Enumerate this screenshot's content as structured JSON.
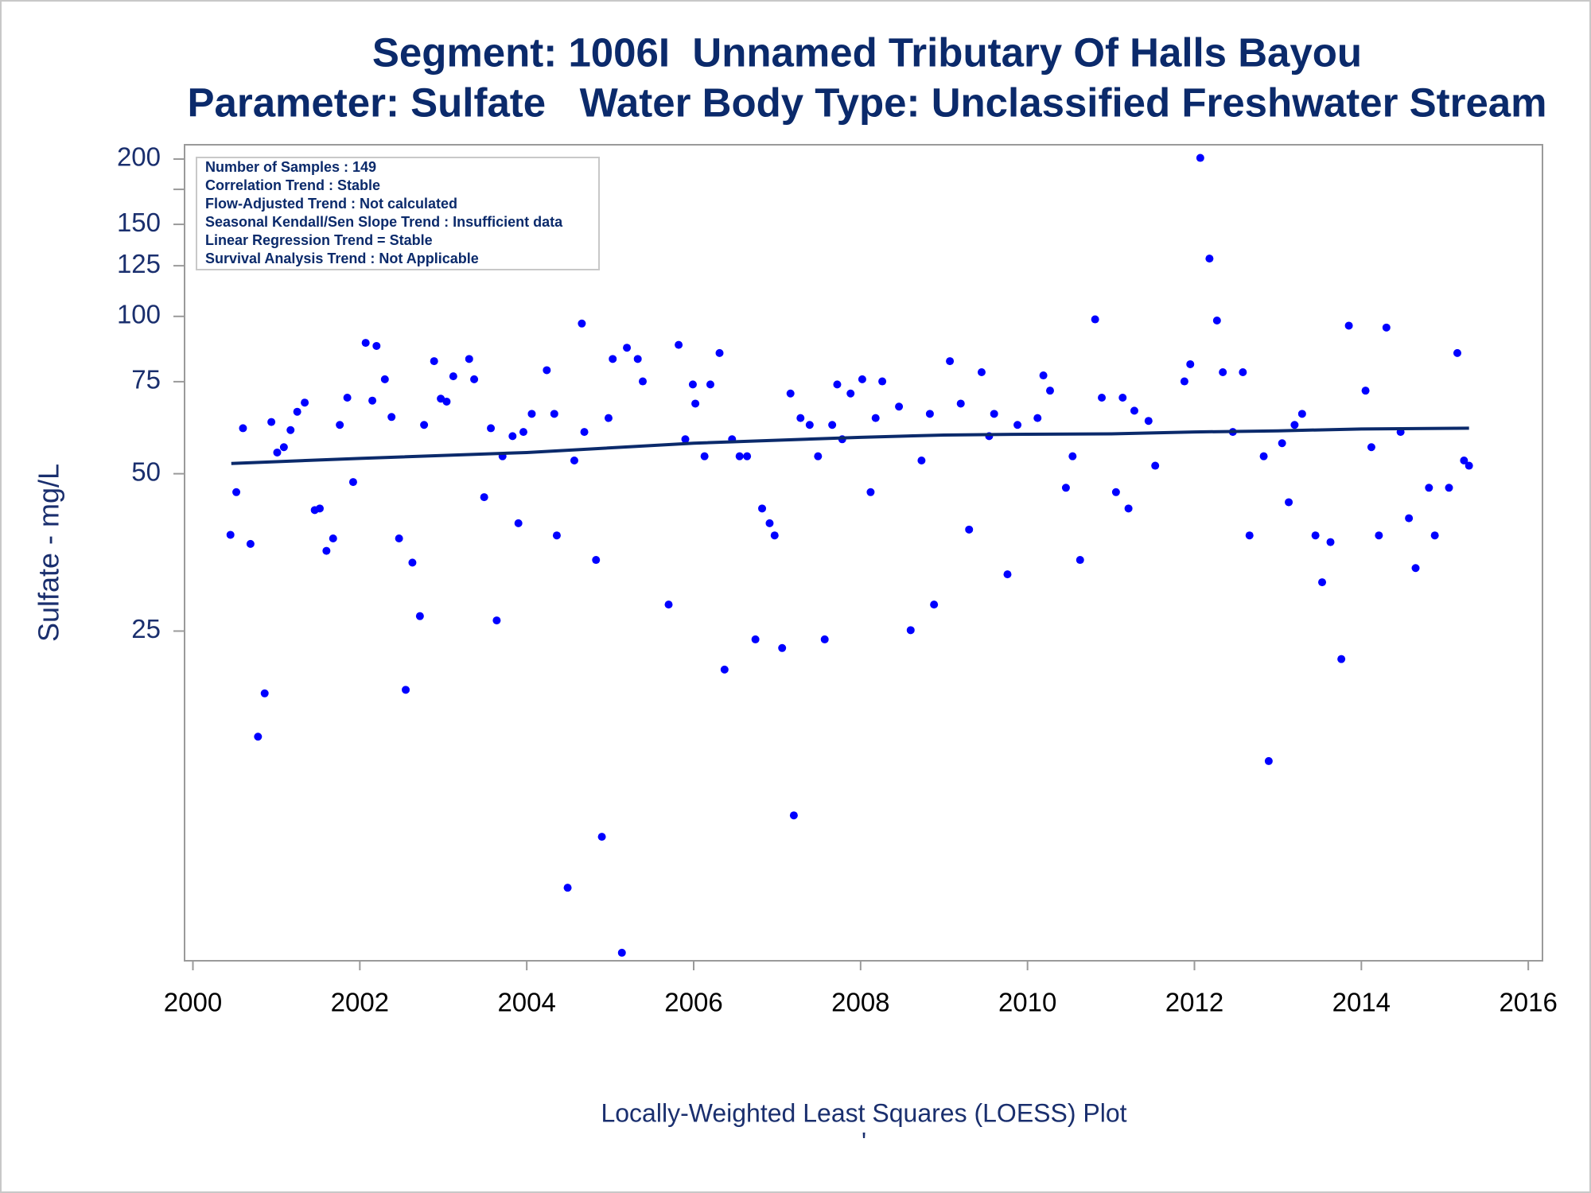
{
  "chart_data": {
    "type": "scatter",
    "title": "Segment: 1006I  Unnamed Tributary Of Halls Bayou",
    "subtitle": "Parameter: Sulfate   Water Body Type: Unclassified Freshwater Stream",
    "y_label": "Sulfate - mg/L",
    "footnote": "Locally-Weighted Least Squares (LOESS) Plot",
    "footnote_mark": "'",
    "annotations": [
      "Number of Samples : 149",
      "Correlation Trend : Stable",
      "Flow-Adjusted Trend : Not calculated",
      "Seasonal Kendall/Sen Slope Trend : Insufficient data",
      "Linear Regression Trend = Stable",
      "Survival Analysis Trend : Not Applicable"
    ],
    "xlim": [
      1999.9,
      2016.17
    ],
    "xticks": [
      2000,
      2002,
      2004,
      2006,
      2008,
      2010,
      2012,
      2014,
      2016
    ],
    "ylim": [
      5.85,
      213
    ],
    "ylog": true,
    "yticks": [
      25,
      50,
      75,
      100,
      125,
      150,
      {
        "value": 175,
        "label": null
      },
      200
    ],
    "series": [
      {
        "type": "scatter",
        "color": "#0000ff",
        "x": [
          2000.45,
          2000.52,
          2000.6,
          2000.69,
          2000.78,
          2000.86,
          2000.94,
          2001.01,
          2001.09,
          2001.17,
          2001.25,
          2001.34,
          2001.46,
          2001.52,
          2001.6,
          2001.68,
          2001.76,
          2001.85,
          2001.92,
          2002.07,
          2002.15,
          2002.2,
          2002.3,
          2002.38,
          2002.47,
          2002.55,
          2002.63,
          2002.72,
          2002.77,
          2002.89,
          2002.97,
          2003.04,
          2003.12,
          2003.31,
          2003.37,
          2003.49,
          2003.57,
          2003.64,
          2003.71,
          2003.83,
          2003.9,
          2003.96,
          2004.06,
          2004.24,
          2004.33,
          2004.36,
          2004.49,
          2004.57,
          2004.66,
          2004.69,
          2004.83,
          2004.9,
          2004.98,
          2005.03,
          2005.14,
          2005.2,
          2005.33,
          2005.39,
          2005.7,
          2005.82,
          2005.9,
          2005.99,
          2006.02,
          2006.13,
          2006.2,
          2006.31,
          2006.37,
          2006.46,
          2006.55,
          2006.64,
          2006.74,
          2006.82,
          2006.91,
          2006.97,
          2007.06,
          2007.16,
          2007.2,
          2007.28,
          2007.39,
          2007.49,
          2007.57,
          2007.66,
          2007.72,
          2007.78,
          2007.88,
          2008.02,
          2008.12,
          2008.18,
          2008.26,
          2008.46,
          2008.6,
          2008.73,
          2008.83,
          2008.88,
          2009.07,
          2009.2,
          2009.3,
          2009.45,
          2009.54,
          2009.6,
          2009.76,
          2009.88,
          2010.12,
          2010.19,
          2010.27,
          2010.46,
          2010.54,
          2010.63,
          2010.81,
          2010.89,
          2011.06,
          2011.14,
          2011.21,
          2011.28,
          2011.45,
          2011.53,
          2011.88,
          2011.95,
          2012.07,
          2012.18,
          2012.27,
          2012.34,
          2012.46,
          2012.58,
          2012.66,
          2012.83,
          2012.89,
          2013.05,
          2013.13,
          2013.2,
          2013.29,
          2013.45,
          2013.53,
          2013.63,
          2013.76,
          2013.85,
          2014.05,
          2014.12,
          2014.21,
          2014.3,
          2014.47,
          2014.57,
          2014.65,
          2014.81,
          2014.88,
          2015.05,
          2015.15,
          2015.23,
          2015.29
        ],
        "values": [
          38.2,
          46.1,
          61.1,
          36.7,
          15.7,
          19.0,
          62.8,
          54.9,
          56.2,
          60.6,
          65.7,
          68.4,
          42.6,
          42.9,
          35.6,
          37.6,
          62.0,
          69.9,
          48.2,
          89.0,
          69.0,
          87.8,
          75.8,
          64.2,
          37.6,
          19.3,
          33.8,
          26.7,
          62.0,
          82.1,
          69.6,
          68.7,
          76.8,
          82.9,
          75.8,
          45.1,
          61.1,
          26.2,
          54.0,
          59.0,
          40.2,
          60.1,
          65.1,
          78.9,
          65.1,
          38.1,
          8.07,
          53.0,
          96.9,
          60.1,
          34.2,
          10.1,
          63.9,
          82.9,
          6.06,
          87.1,
          82.9,
          75.1,
          28.1,
          88.2,
          58.2,
          74.1,
          68.1,
          54.0,
          74.1,
          85.1,
          21.1,
          58.2,
          54.0,
          54.0,
          24.1,
          42.9,
          40.2,
          38.1,
          23.2,
          71.2,
          11.1,
          63.9,
          62.0,
          54.0,
          24.1,
          62.0,
          74.1,
          58.2,
          71.2,
          75.8,
          46.1,
          63.9,
          75.1,
          67.2,
          25.1,
          53.0,
          65.1,
          28.1,
          82.1,
          68.1,
          39.1,
          78.2,
          59.0,
          65.1,
          32.1,
          62.0,
          63.9,
          77.1,
          72.1,
          47.0,
          54.0,
          34.2,
          98.7,
          69.9,
          46.1,
          69.9,
          42.9,
          66.0,
          63.1,
          51.8,
          75.1,
          81.0,
          201,
          129,
          98.2,
          78.2,
          60.1,
          78.2,
          38.1,
          54.0,
          14.1,
          57.2,
          44.1,
          62.0,
          65.1,
          38.1,
          31.0,
          37.0,
          22.1,
          96.0,
          72.1,
          56.2,
          38.1,
          95.2,
          60.1,
          41.1,
          33.0,
          47.0,
          38.1,
          47.0,
          85.1,
          53.0,
          51.8
        ]
      },
      {
        "type": "line",
        "color": "#0b2a6b",
        "x": [
          2000.46,
          2002,
          2004,
          2006,
          2008,
          2009,
          2010,
          2011,
          2012,
          2013,
          2014,
          2015.29
        ],
        "values": [
          52.3,
          53.5,
          54.9,
          57.2,
          58.7,
          59.3,
          59.5,
          59.6,
          60.1,
          60.4,
          60.9,
          61.1
        ]
      }
    ]
  }
}
